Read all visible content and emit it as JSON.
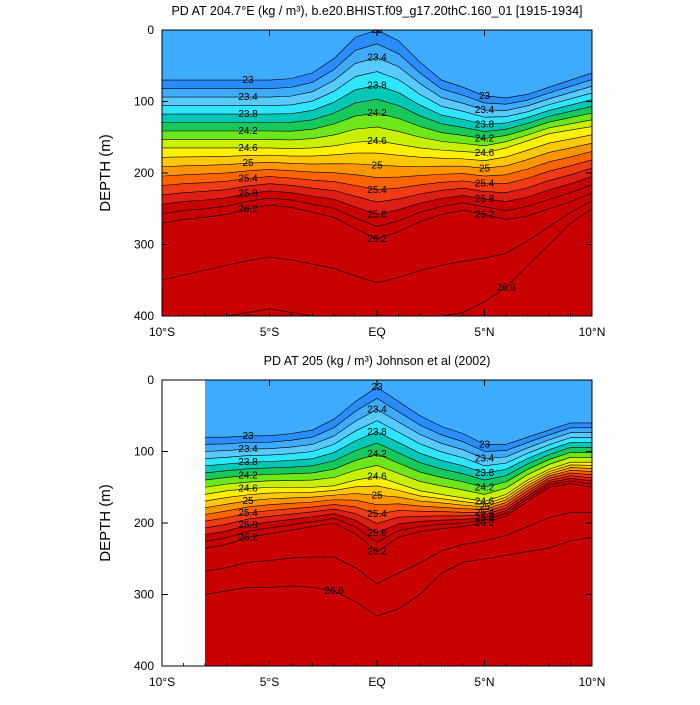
{
  "chart_data": [
    {
      "type": "heatmap",
      "title": "PD AT 204.7°E (kg / m³), b.e20.BHIST.f09_g17.20thC.160_01 [1915-1934]",
      "ylabel": "DEPTH (m)",
      "xlabel": "",
      "xlim": [
        -10,
        10
      ],
      "ylim": [
        0,
        400
      ],
      "y_reversed": true,
      "x_ticks": [
        {
          "value": -10,
          "label": "10°S"
        },
        {
          "value": -5,
          "label": "5°S"
        },
        {
          "value": 0,
          "label": "EQ"
        },
        {
          "value": 5,
          "label": "5°N"
        },
        {
          "value": 10,
          "label": "10°N"
        }
      ],
      "y_ticks": [
        0,
        100,
        200,
        300,
        400
      ],
      "x_nodes": [
        -10,
        -9,
        -8,
        -7,
        -6,
        -5,
        -4,
        -3,
        -2,
        -1,
        0,
        1,
        2,
        3,
        4,
        5,
        6,
        7,
        8,
        9,
        10
      ],
      "isopycnal_depths": {
        "23.0": [
          70,
          70,
          70,
          70,
          70,
          70,
          68,
          60,
          40,
          10,
          0,
          15,
          45,
          70,
          80,
          92,
          95,
          90,
          80,
          70,
          60
        ],
        "24.6": [
          165,
          165,
          165,
          165,
          165,
          165,
          166,
          165,
          162,
          157,
          155,
          160,
          165,
          168,
          170,
          172,
          165,
          155,
          145,
          140,
          135
        ],
        "26.2": [
          270,
          265,
          262,
          258,
          250,
          245,
          248,
          255,
          262,
          278,
          292,
          282,
          268,
          258,
          252,
          258,
          265,
          260,
          250,
          240,
          228
        ],
        "26.6": [
          430,
          420,
          410,
          400,
          395,
          390,
          395,
          400,
          405,
          410,
          415,
          410,
          405,
          400,
          395,
          380,
          360,
          330,
          300,
          270,
          250
        ]
      },
      "min_value": 22.2,
      "max_value": 26.6,
      "contour_labels": [
        "23",
        "23.4",
        "23.8",
        "24.2",
        "24.6",
        "25",
        "25.4",
        "25.8",
        "26.2",
        "26.6",
        "22.6"
      ]
    },
    {
      "type": "heatmap",
      "title": "PD AT 205 (kg / m³) Johnson et al (2002)",
      "ylabel": "DEPTH (m)",
      "xlabel": "",
      "xlim": [
        -10,
        10
      ],
      "ylim": [
        0,
        400
      ],
      "y_reversed": true,
      "data_x_range": [
        -8,
        10
      ],
      "x_ticks": [
        {
          "value": -10,
          "label": "10°S"
        },
        {
          "value": -5,
          "label": "5°S"
        },
        {
          "value": 0,
          "label": "EQ"
        },
        {
          "value": 5,
          "label": "5°N"
        },
        {
          "value": 10,
          "label": "10°N"
        }
      ],
      "y_ticks": [
        0,
        100,
        200,
        300,
        400
      ],
      "x_nodes": [
        -8,
        -7,
        -6,
        -5,
        -4,
        -3,
        -2,
        -1,
        0,
        1,
        2,
        3,
        4,
        5,
        6,
        7,
        8,
        9,
        10
      ],
      "isopycnal_depths": {
        "23.0": [
          80,
          80,
          78,
          78,
          75,
          70,
          55,
          30,
          10,
          30,
          50,
          65,
          75,
          90,
          90,
          80,
          70,
          60,
          60
        ],
        "24.6": [
          160,
          155,
          152,
          150,
          150,
          150,
          148,
          140,
          135,
          145,
          155,
          160,
          165,
          170,
          160,
          140,
          125,
          115,
          115
        ],
        "26.2": [
          235,
          230,
          220,
          215,
          210,
          205,
          200,
          215,
          240,
          220,
          212,
          208,
          205,
          200,
          190,
          170,
          150,
          145,
          150
        ],
        "26.6": [
          300,
          295,
          290,
          290,
          288,
          290,
          295,
          310,
          330,
          320,
          300,
          270,
          255,
          250,
          245,
          240,
          235,
          225,
          220
        ]
      },
      "min_value": 22.2,
      "max_value": 26.6,
      "contour_labels": [
        "23",
        "23.4",
        "23.8",
        "24.2",
        "24.6",
        "25",
        "25.4",
        "25.8",
        "26.2",
        "26.6",
        "22.2",
        "22.6"
      ]
    }
  ]
}
